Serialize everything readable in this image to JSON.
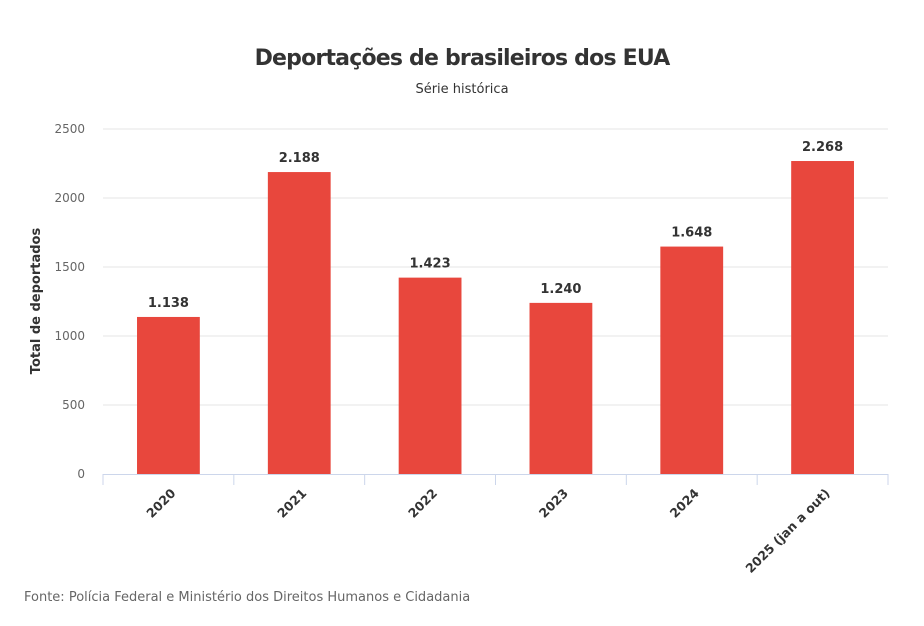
{
  "chart_data": {
    "type": "bar",
    "title": "Deportações de brasileiros dos EUA",
    "subtitle": "Série histórica",
    "xlabel": "",
    "ylabel": "Total de deportados",
    "categories": [
      "2020",
      "2021",
      "2022",
      "2023",
      "2024",
      "2025 (jan a out)"
    ],
    "values": [
      1138,
      2188,
      1423,
      1240,
      1648,
      2268
    ],
    "data_labels": [
      "1.138",
      "2.188",
      "1.423",
      "1.240",
      "1.648",
      "2.268"
    ],
    "ylim": [
      0,
      2500
    ],
    "yticks": [
      0,
      500,
      1000,
      1500,
      2000,
      2500
    ],
    "grid": true,
    "legend": "none",
    "bar_color": "#e8473d",
    "source": "Fonte: Polícia Federal e Ministério dos Direitos Humanos e Cidadania"
  }
}
